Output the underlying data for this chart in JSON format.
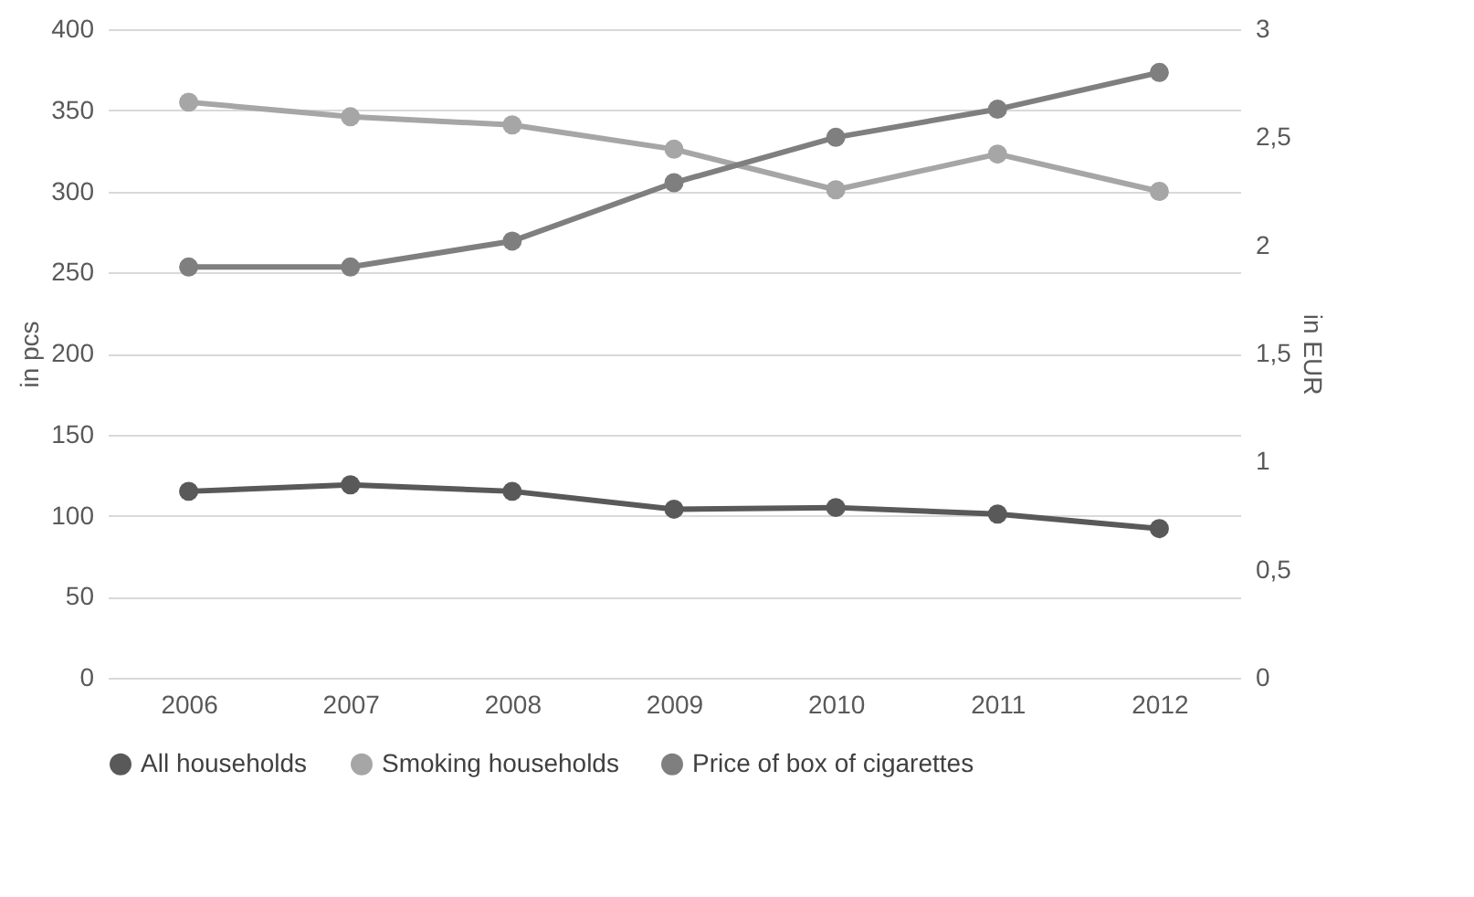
{
  "chart_data": {
    "type": "line",
    "categories": [
      "2006",
      "2007",
      "2008",
      "2009",
      "2010",
      "2011",
      "2012"
    ],
    "ylabel": "in pcs",
    "y2label": "in EUR",
    "ylim": [
      0,
      400
    ],
    "yticks": [
      0,
      50,
      100,
      150,
      200,
      250,
      300,
      350,
      400
    ],
    "y2lim": [
      0,
      3
    ],
    "y2ticks": [
      0,
      {
        "value": 0.5,
        "label": "0,5"
      },
      1,
      {
        "value": 1.5,
        "label": "1,5"
      },
      2,
      {
        "value": 2.5,
        "label": "2,5"
      },
      3
    ],
    "grid": "y",
    "legend": "bottom",
    "marker": "circle",
    "line_style": "solid",
    "series": [
      {
        "name": "All households",
        "color": "#595959",
        "values": [
          115,
          119,
          115,
          104,
          105,
          101,
          92
        ]
      },
      {
        "name": "Smoking households",
        "color": "#a6a6a6",
        "values": [
          355,
          346,
          341,
          326,
          301,
          323,
          300
        ]
      },
      {
        "name": "Price of box of cigarettes",
        "color": "#7f7f7f",
        "axis": "y2",
        "values": [
          1.9,
          1.9,
          2.02,
          2.29,
          2.5,
          2.63,
          2.8
        ]
      }
    ]
  }
}
